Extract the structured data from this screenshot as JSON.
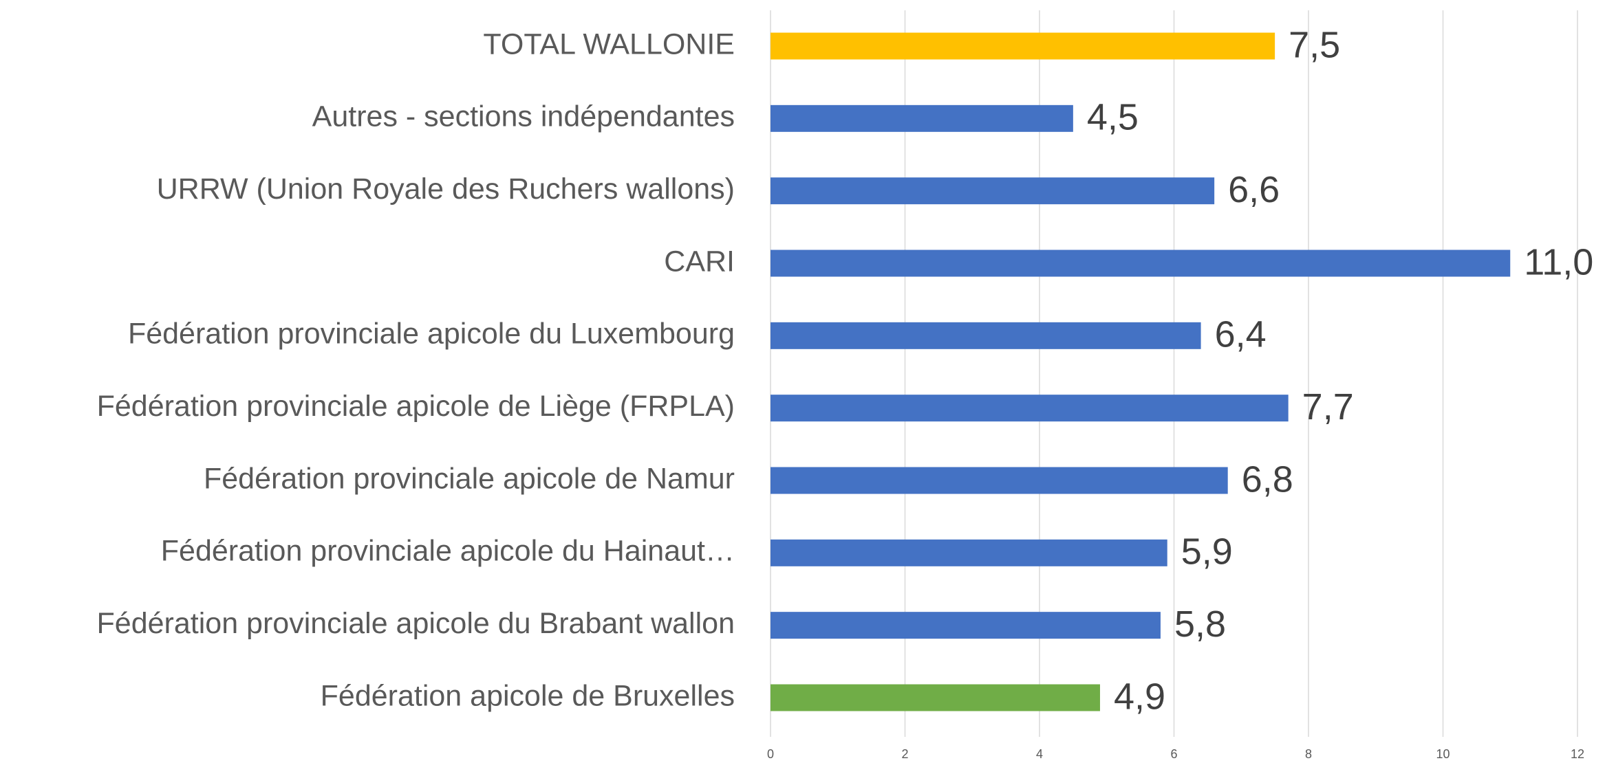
{
  "chart_data": {
    "type": "barh",
    "categories": [
      "TOTAL WALLONIE",
      "Autres - sections indépendantes",
      "URRW (Union Royale des Ruchers wallons)",
      "CARI",
      "Fédération provinciale apicole du Luxembourg",
      "Fédération provinciale apicole de Liège (FRPLA)",
      "Fédération provinciale apicole de Namur",
      "Fédération provinciale apicole du Hainaut…",
      "Fédération provinciale apicole du Brabant wallon",
      "Fédération apicole de Bruxelles"
    ],
    "values": [
      7.5,
      4.5,
      6.6,
      11.0,
      6.4,
      7.7,
      6.8,
      5.9,
      5.8,
      4.9
    ],
    "value_labels": [
      "7,5",
      "4,5",
      "6,6",
      "11,0",
      "6,4",
      "7,7",
      "6,8",
      "5,9",
      "5,8",
      "4,9"
    ],
    "colors": [
      "#FFC000",
      "#4472C4",
      "#4472C4",
      "#4472C4",
      "#4472C4",
      "#4472C4",
      "#4472C4",
      "#4472C4",
      "#4472C4",
      "#70AD47"
    ],
    "xlim": [
      0,
      12
    ],
    "xticks": [
      0,
      2,
      4,
      6,
      8,
      10,
      12
    ],
    "grid": true
  }
}
